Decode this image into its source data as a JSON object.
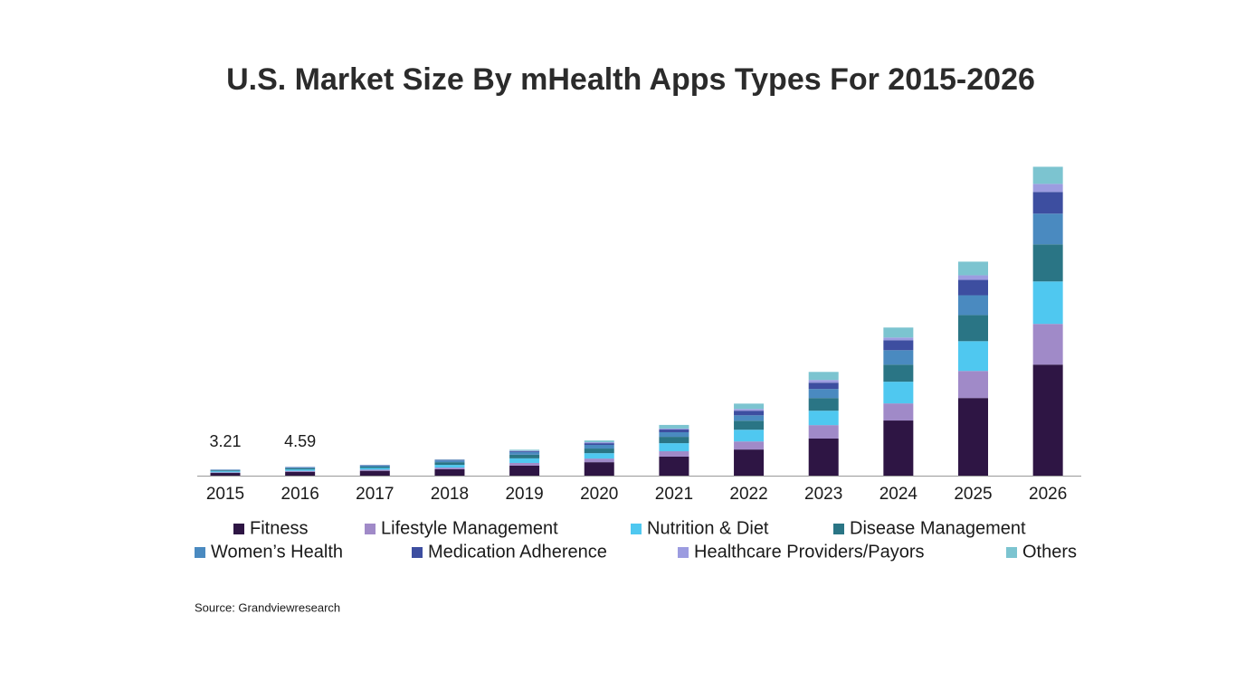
{
  "chart_data": {
    "type": "stacked_bar",
    "title": "U.S. Market Size By mHealth Apps Types For 2015-2026",
    "source": "Source: Grandviewresearch",
    "categories": [
      "2015",
      "2016",
      "2017",
      "2018",
      "2019",
      "2020",
      "2021",
      "2022",
      "2023",
      "2024",
      "2025",
      "2026"
    ],
    "totals": [
      3.21,
      4.59,
      null,
      null,
      null,
      null,
      null,
      null,
      null,
      null,
      null,
      null
    ],
    "ylim": [
      0,
      161
    ],
    "series": [
      {
        "name": "Fitness",
        "color": "#2e1544",
        "values": [
          1.4,
          2.0,
          2.5,
          3.3,
          5.2,
          7.0,
          9.9,
          13.6,
          19.3,
          28.7,
          40.4,
          57.8
        ]
      },
      {
        "name": "Lifestyle Management",
        "color": "#a08ac8",
        "values": [
          0.35,
          0.5,
          0.6,
          0.9,
          1.4,
          1.9,
          2.8,
          4.2,
          7.0,
          8.9,
          14.1,
          21.2
        ]
      },
      {
        "name": "Nutrition & Diet",
        "color": "#4fc8f0",
        "values": [
          0.55,
          0.75,
          0.9,
          1.4,
          2.4,
          2.8,
          4.2,
          6.1,
          7.5,
          11.3,
          15.5,
          22.1
        ]
      },
      {
        "name": "Disease Management",
        "color": "#2a7585",
        "values": [
          0.42,
          0.6,
          0.7,
          1.4,
          1.9,
          2.4,
          3.3,
          4.7,
          6.6,
          8.9,
          13.6,
          19.3
        ]
      },
      {
        "name": "Women’s Health",
        "color": "#4a8ac0",
        "values": [
          0.3,
          0.44,
          0.5,
          0.9,
          1.4,
          1.9,
          2.4,
          2.8,
          4.7,
          7.5,
          10.3,
          16.0
        ]
      },
      {
        "name": "Medication Adherence",
        "color": "#3d4ea0",
        "values": [
          0.1,
          0.15,
          0.2,
          0.3,
          0.5,
          0.9,
          1.4,
          2.4,
          3.3,
          5.2,
          8.0,
          11.3
        ]
      },
      {
        "name": "Healthcare Providers/Payors",
        "color": "#9c9ce0",
        "values": [
          0.03,
          0.05,
          0.1,
          0.1,
          0.2,
          0.5,
          0.5,
          0.9,
          1.4,
          1.4,
          2.4,
          4.2
        ]
      },
      {
        "name": "Others",
        "color": "#7cc4d0",
        "values": [
          0.06,
          0.1,
          0.1,
          0.2,
          0.5,
          0.9,
          1.9,
          2.8,
          4.2,
          5.2,
          7.1,
          8.9
        ]
      }
    ]
  }
}
